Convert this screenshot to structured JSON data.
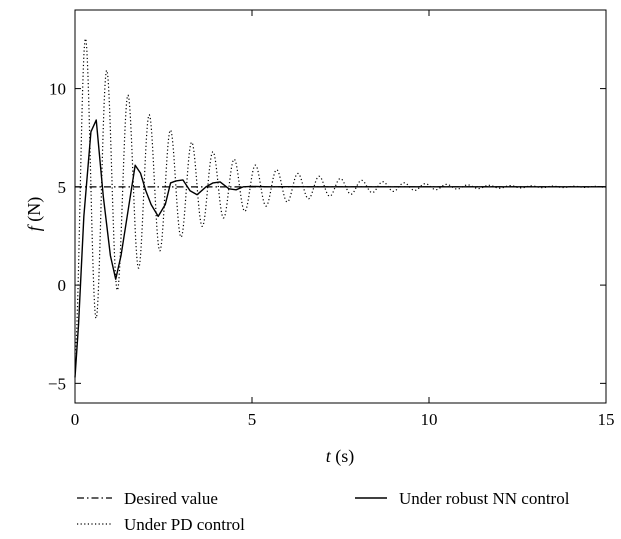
{
  "chart_data": {
    "type": "line",
    "title": "",
    "xlabel": {
      "symbol": "t",
      "unit": " (s)"
    },
    "ylabel": {
      "symbol": "f",
      "unit": " (N)"
    },
    "xlim": [
      0,
      15
    ],
    "ylim": [
      -6,
      14
    ],
    "xticks": [
      0,
      5,
      10,
      15
    ],
    "yticks": [
      -5,
      0,
      5,
      10
    ],
    "grid": false,
    "legend_position": "bottom",
    "series": [
      {
        "name": "Desired value",
        "style": "dashdot",
        "color": "#000000",
        "x": [
          0,
          15
        ],
        "y": [
          5,
          5
        ]
      },
      {
        "name": "Under robust NN control",
        "style": "solid",
        "color": "#000000",
        "x": [
          0,
          0.1,
          0.25,
          0.45,
          0.6,
          0.8,
          1.0,
          1.15,
          1.3,
          1.5,
          1.7,
          1.85,
          2.0,
          2.15,
          2.35,
          2.55,
          2.7,
          2.85,
          3.05,
          3.25,
          3.45,
          3.7,
          3.9,
          4.1,
          4.35,
          4.55,
          4.75,
          5.0,
          5.5,
          6.0,
          7.0,
          15.0
        ],
        "y": [
          -4.7,
          -2.0,
          3.5,
          7.8,
          8.4,
          4.5,
          1.5,
          0.3,
          1.5,
          3.8,
          6.1,
          5.7,
          4.8,
          4.1,
          3.5,
          4.1,
          5.2,
          5.3,
          5.35,
          4.8,
          4.6,
          5.0,
          5.2,
          5.25,
          4.9,
          4.85,
          5.0,
          5.02,
          5.0,
          5.01,
          5.0,
          5.0
        ]
      },
      {
        "name": "Under PD control",
        "style": "dotted",
        "color": "#000000",
        "osc": {
          "amplitude": 8.0,
          "decay": 0.4,
          "period": 0.6,
          "offset": 5.0,
          "x_start": 0,
          "x_end": 15,
          "samples": 1200
        }
      }
    ]
  }
}
